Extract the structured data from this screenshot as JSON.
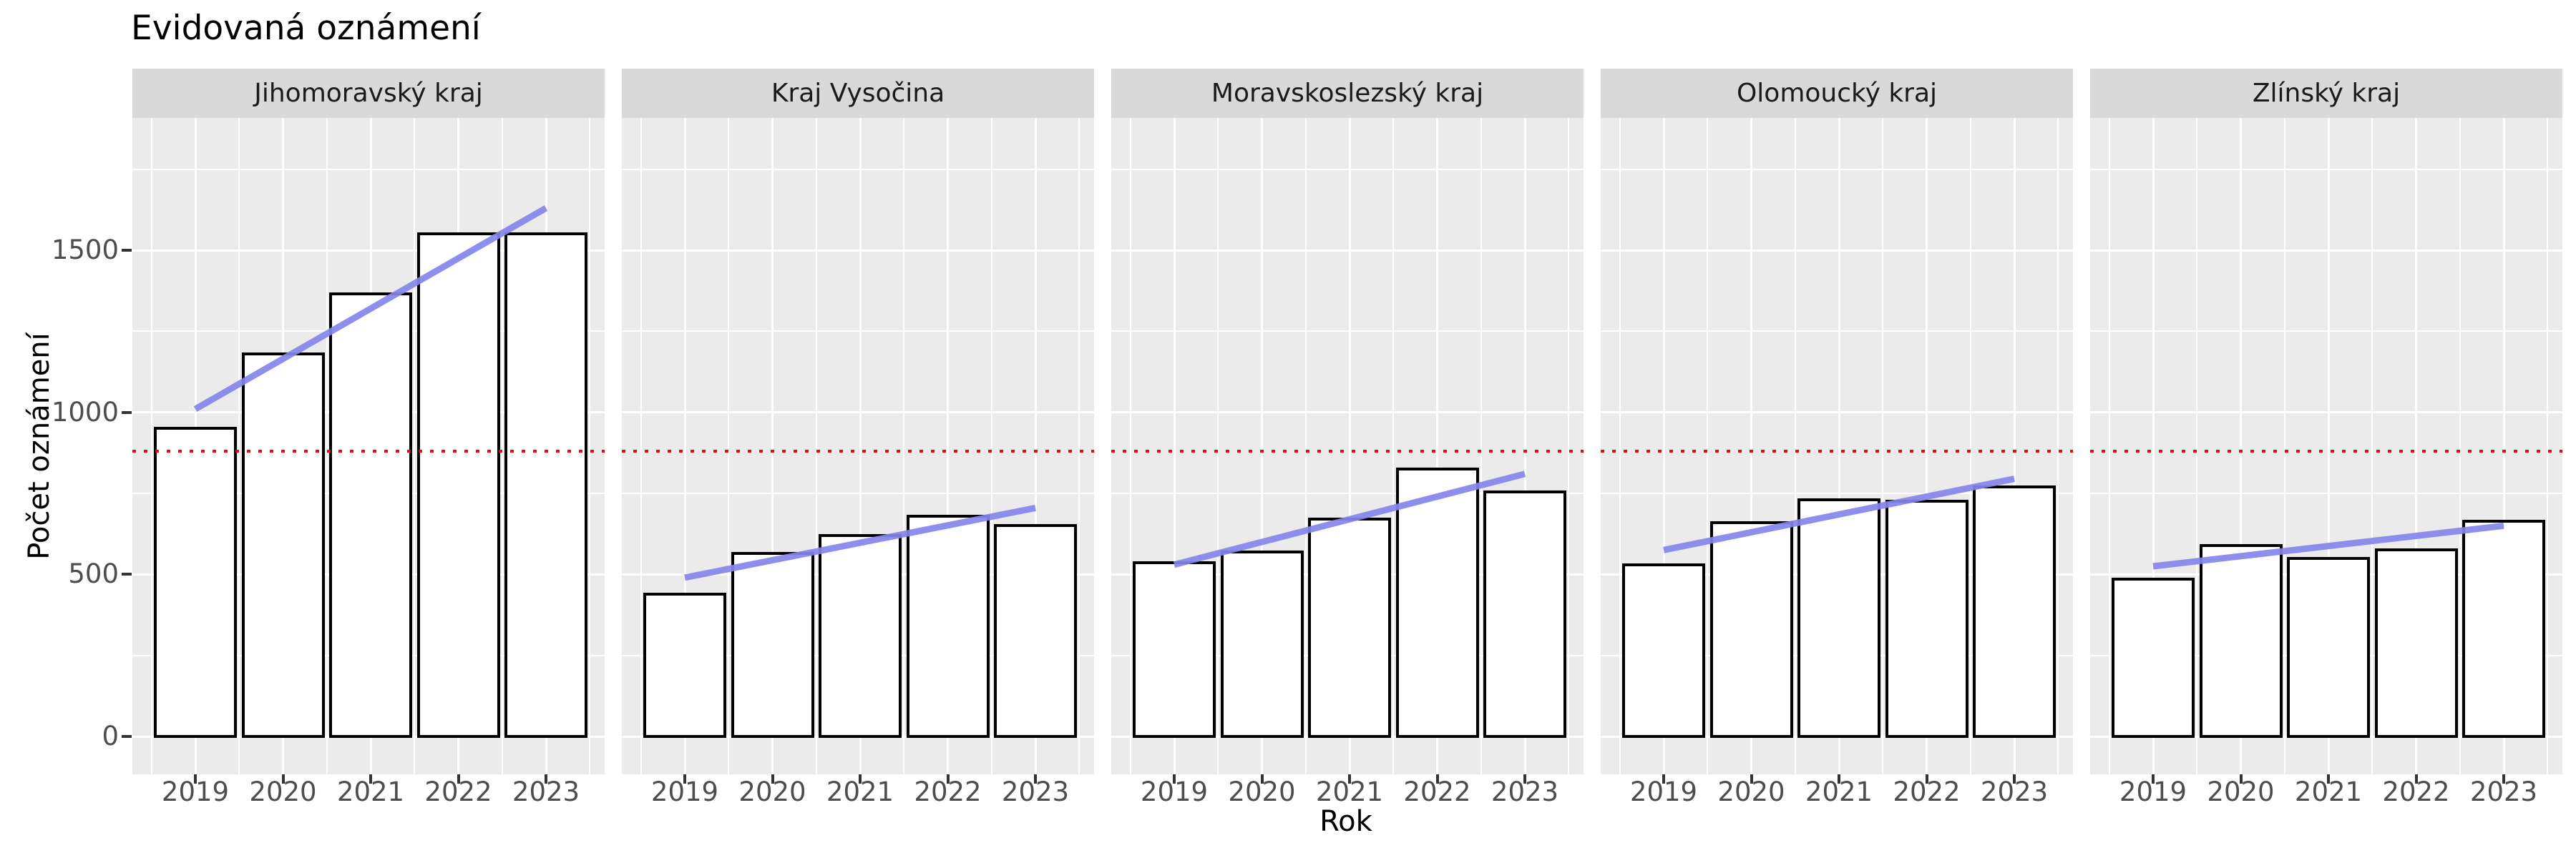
{
  "chart_data": {
    "type": "bar",
    "title": "Evidovaná oznámení",
    "xlabel": "Rok",
    "ylabel": "Počet oznámení",
    "categories": [
      "2019",
      "2020",
      "2021",
      "2022",
      "2023"
    ],
    "y_ticks": [
      0,
      500,
      1000,
      1500
    ],
    "y_minor_ticks": [
      250,
      750,
      1250,
      1750
    ],
    "ylim": [
      -118,
      1912
    ],
    "grid": "major and minor, white on gray panel",
    "legend": "none",
    "facets": [
      {
        "label": "Jihomoravský kraj",
        "values": [
          950,
          1180,
          1365,
          1550,
          1550
        ],
        "trend": {
          "x": [
            2019,
            2023
          ],
          "y": [
            1010,
            1630
          ]
        }
      },
      {
        "label": "Kraj Vysočina",
        "values": [
          440,
          565,
          620,
          680,
          650
        ],
        "trend": {
          "x": [
            2019,
            2023
          ],
          "y": [
            490,
            705
          ]
        }
      },
      {
        "label": "Moravskoslezský kraj",
        "values": [
          535,
          570,
          670,
          825,
          755
        ],
        "trend": {
          "x": [
            2019,
            2023
          ],
          "y": [
            530,
            810
          ]
        }
      },
      {
        "label": "Olomoucký kraj",
        "values": [
          530,
          660,
          730,
          725,
          770
        ],
        "trend": {
          "x": [
            2019,
            2023
          ],
          "y": [
            575,
            795
          ]
        }
      },
      {
        "label": "Zlínský kraj",
        "values": [
          485,
          590,
          550,
          575,
          665
        ],
        "trend": {
          "x": [
            2019,
            2023
          ],
          "y": [
            525,
            650
          ]
        }
      }
    ],
    "reference_line": {
      "value": 880,
      "color": "#ff0000",
      "style": "dotted"
    },
    "colors": {
      "bar_fill": "#ffffff",
      "bar_stroke": "#000000",
      "trend_line": "#8486eb",
      "panel_background": "#ebebeb",
      "strip_background": "#d9d9d9",
      "strip_text": "#1a1a1a",
      "axis_text": "#4d4d4d",
      "title_text": "#000000"
    }
  }
}
